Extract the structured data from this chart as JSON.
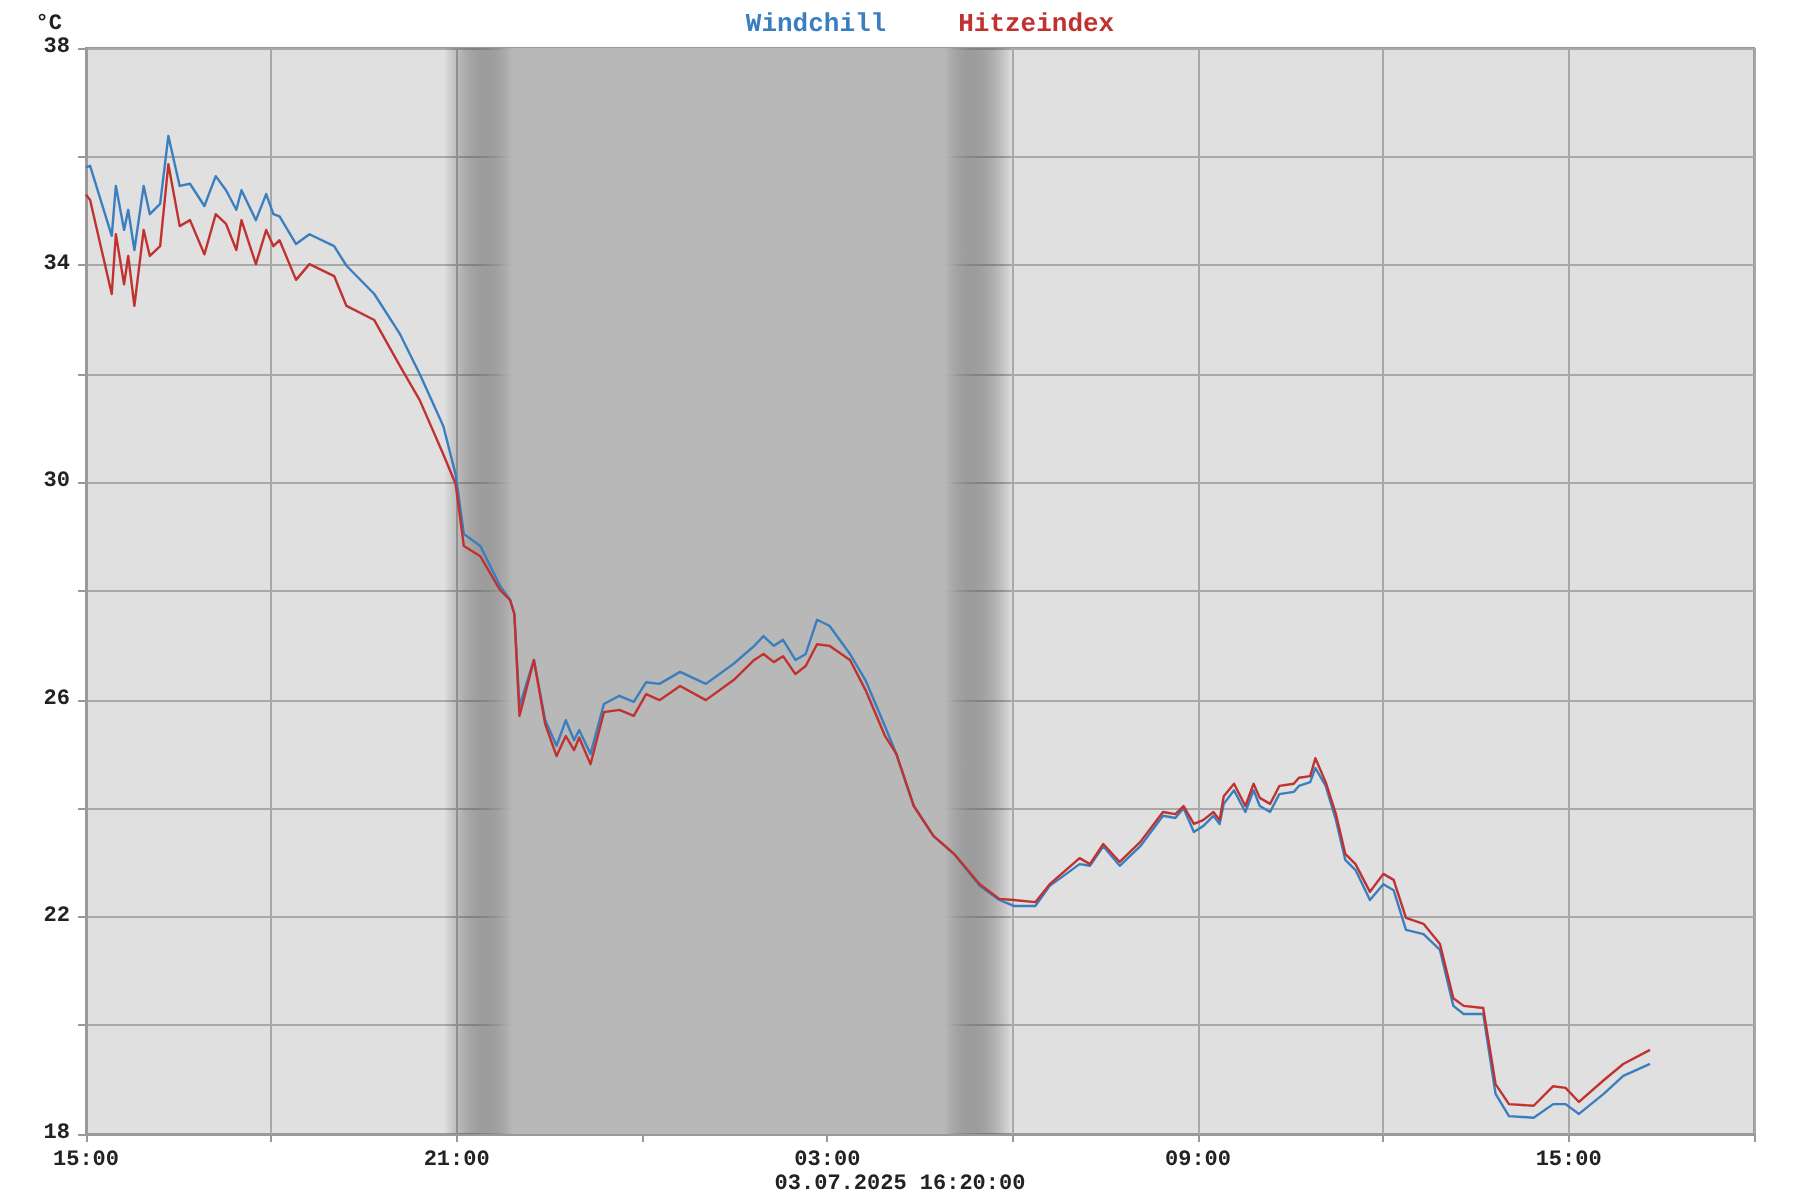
{
  "chart_data": {
    "type": "line",
    "ylabel": "°C",
    "legend": "top",
    "grid": true,
    "marker": "none",
    "line_style": "solid",
    "annotations": [
      "03.07.2025 16:20:00"
    ],
    "xlim": [
      "2025-07-02T15:00",
      "2025-07-03T18:00"
    ],
    "ylim": [
      18,
      38
    ],
    "xticks": [
      {
        "value": "2025-07-02T15:00",
        "label": "15:00"
      },
      {
        "value": "2025-07-02T18:00",
        "label": null
      },
      {
        "value": "2025-07-02T21:00",
        "label": "21:00"
      },
      {
        "value": "2025-07-03T00:00",
        "label": null
      },
      {
        "value": "2025-07-03T03:00",
        "label": "03:00"
      },
      {
        "value": "2025-07-03T06:00",
        "label": null
      },
      {
        "value": "2025-07-03T09:00",
        "label": "09:00"
      },
      {
        "value": "2025-07-03T12:00",
        "label": null
      },
      {
        "value": "2025-07-03T15:00",
        "label": "15:00"
      },
      {
        "value": "2025-07-03T18:00",
        "label": null
      }
    ],
    "yticks": [
      18,
      {
        "value": 20,
        "label": null
      },
      22,
      {
        "value": 24,
        "label": null
      },
      26,
      {
        "value": 28,
        "label": null
      },
      30,
      {
        "value": 32,
        "label": null
      },
      34,
      {
        "value": 36,
        "label": null
      },
      38
    ],
    "bands": [
      {
        "axis": "x",
        "from": "2025-07-02T20:48",
        "to": "2025-07-03T06:00",
        "color": "#b8b8b8"
      }
    ],
    "x": [
      "2025-07-02T15:00",
      "2025-07-02T15:04",
      "2025-07-02T15:25",
      "2025-07-02T15:29",
      "2025-07-02T15:37",
      "2025-07-02T15:41",
      "2025-07-02T15:47",
      "2025-07-02T15:56",
      "2025-07-02T16:02",
      "2025-07-02T16:12",
      "2025-07-02T16:20",
      "2025-07-02T16:31",
      "2025-07-02T16:41",
      "2025-07-02T16:55",
      "2025-07-02T17:06",
      "2025-07-02T17:16",
      "2025-07-02T17:26",
      "2025-07-02T17:31",
      "2025-07-02T17:45",
      "2025-07-02T17:55",
      "2025-07-02T18:02",
      "2025-07-02T18:08",
      "2025-07-02T18:24",
      "2025-07-02T18:37",
      "2025-07-02T19:01",
      "2025-07-02T19:13",
      "2025-07-02T19:40",
      "2025-07-02T20:05",
      "2025-07-02T20:24",
      "2025-07-02T20:47",
      "2025-07-02T20:59",
      "2025-07-02T21:07",
      "2025-07-02T21:23",
      "2025-07-02T21:42",
      "2025-07-02T21:52",
      "2025-07-02T21:56",
      "2025-07-02T22:01",
      "2025-07-02T22:15",
      "2025-07-02T22:26",
      "2025-07-02T22:37",
      "2025-07-02T22:46",
      "2025-07-02T22:54",
      "2025-07-02T22:59",
      "2025-07-02T23:10",
      "2025-07-02T23:23",
      "2025-07-02T23:38",
      "2025-07-02T23:52",
      "2025-07-03T00:04",
      "2025-07-03T00:17",
      "2025-07-03T00:37",
      "2025-07-03T01:02",
      "2025-07-03T01:29",
      "2025-07-03T01:49",
      "2025-07-03T01:58",
      "2025-07-03T02:08",
      "2025-07-03T02:17",
      "2025-07-03T02:29",
      "2025-07-03T02:39",
      "2025-07-03T02:50",
      "2025-07-03T03:02",
      "2025-07-03T03:22",
      "2025-07-03T03:37",
      "2025-07-03T03:56",
      "2025-07-03T04:07",
      "2025-07-03T04:24",
      "2025-07-03T04:43",
      "2025-07-03T05:03",
      "2025-07-03T05:28",
      "2025-07-03T05:47",
      "2025-07-03T06:01",
      "2025-07-03T06:22",
      "2025-07-03T06:36",
      "2025-07-03T07:05",
      "2025-07-03T07:15",
      "2025-07-03T07:28",
      "2025-07-03T07:44",
      "2025-07-03T08:04",
      "2025-07-03T08:26",
      "2025-07-03T08:38",
      "2025-07-03T08:46",
      "2025-07-03T08:56",
      "2025-07-03T09:05",
      "2025-07-03T09:15",
      "2025-07-03T09:21",
      "2025-07-03T09:25",
      "2025-07-03T09:35",
      "2025-07-03T09:46",
      "2025-07-03T09:54",
      "2025-07-03T10:00",
      "2025-07-03T10:10",
      "2025-07-03T10:19",
      "2025-07-03T10:33",
      "2025-07-03T10:38",
      "2025-07-03T10:49",
      "2025-07-03T10:54",
      "2025-07-03T11:04",
      "2025-07-03T11:14",
      "2025-07-03T11:23",
      "2025-07-03T11:33",
      "2025-07-03T11:47",
      "2025-07-03T12:00",
      "2025-07-03T12:10",
      "2025-07-03T12:22",
      "2025-07-03T12:39",
      "2025-07-03T12:55",
      "2025-07-03T13:08",
      "2025-07-03T13:18",
      "2025-07-03T13:37",
      "2025-07-03T13:49",
      "2025-07-03T14:02",
      "2025-07-03T14:26",
      "2025-07-03T14:45",
      "2025-07-03T14:57",
      "2025-07-03T15:10",
      "2025-07-03T15:34",
      "2025-07-03T15:53",
      "2025-07-03T16:19"
    ],
    "series": [
      {
        "name": "Windchill",
        "color": "#3a7ebf",
        "values": [
          35.8,
          35.83,
          34.54,
          35.46,
          34.65,
          35.02,
          34.28,
          35.46,
          34.94,
          35.13,
          36.38,
          35.46,
          35.5,
          35.09,
          35.64,
          35.38,
          35.02,
          35.38,
          34.83,
          35.31,
          34.94,
          34.9,
          34.39,
          34.57,
          34.35,
          33.99,
          33.47,
          32.73,
          32.0,
          31.04,
          30.15,
          29.05,
          28.83,
          28.1,
          27.83,
          27.58,
          25.88,
          26.73,
          25.62,
          25.15,
          25.62,
          25.25,
          25.44,
          25.0,
          25.92,
          26.07,
          25.96,
          26.32,
          26.29,
          26.51,
          26.29,
          26.66,
          26.99,
          27.17,
          26.99,
          27.1,
          26.73,
          26.84,
          27.47,
          27.36,
          26.84,
          26.36,
          25.51,
          25.0,
          24.04,
          23.49,
          23.16,
          22.57,
          22.31,
          22.2,
          22.2,
          22.57,
          22.97,
          22.94,
          23.3,
          22.94,
          23.3,
          23.86,
          23.82,
          24.0,
          23.56,
          23.67,
          23.86,
          23.71,
          24.08,
          24.33,
          23.93,
          24.33,
          24.04,
          23.93,
          24.26,
          24.3,
          24.41,
          24.48,
          24.74,
          24.41,
          23.78,
          23.05,
          22.86,
          22.31,
          22.6,
          22.49,
          21.76,
          21.68,
          21.39,
          20.36,
          20.21,
          20.21,
          18.74,
          18.33,
          18.3,
          18.55,
          18.55,
          18.37,
          18.74,
          19.07,
          19.29
        ]
      },
      {
        "name": "Hitzeindex",
        "color": "#c0312f",
        "values": [
          35.3,
          35.2,
          33.47,
          34.57,
          33.65,
          34.17,
          33.25,
          34.65,
          34.17,
          34.35,
          35.86,
          34.72,
          34.83,
          34.2,
          34.94,
          34.76,
          34.28,
          34.83,
          34.02,
          34.65,
          34.35,
          34.46,
          33.73,
          34.02,
          33.8,
          33.25,
          32.99,
          32.14,
          31.52,
          30.52,
          29.97,
          28.83,
          28.64,
          28.02,
          27.83,
          27.58,
          25.7,
          26.73,
          25.55,
          24.96,
          25.33,
          25.07,
          25.3,
          24.81,
          25.77,
          25.81,
          25.7,
          26.1,
          25.99,
          26.25,
          25.99,
          26.36,
          26.73,
          26.84,
          26.69,
          26.8,
          26.47,
          26.62,
          27.02,
          26.99,
          26.73,
          26.18,
          25.33,
          25.0,
          24.04,
          23.49,
          23.16,
          22.6,
          22.33,
          22.31,
          22.27,
          22.6,
          23.08,
          22.97,
          23.34,
          23.01,
          23.38,
          23.93,
          23.89,
          24.04,
          23.71,
          23.78,
          23.93,
          23.78,
          24.22,
          24.45,
          24.04,
          24.45,
          24.19,
          24.08,
          24.41,
          24.45,
          24.56,
          24.59,
          24.92,
          24.48,
          23.89,
          23.16,
          22.97,
          22.46,
          22.79,
          22.68,
          21.98,
          21.87,
          21.5,
          20.5,
          20.36,
          20.32,
          18.92,
          18.55,
          18.52,
          18.88,
          18.85,
          18.59,
          18.99,
          19.29,
          19.55
        ]
      }
    ]
  }
}
